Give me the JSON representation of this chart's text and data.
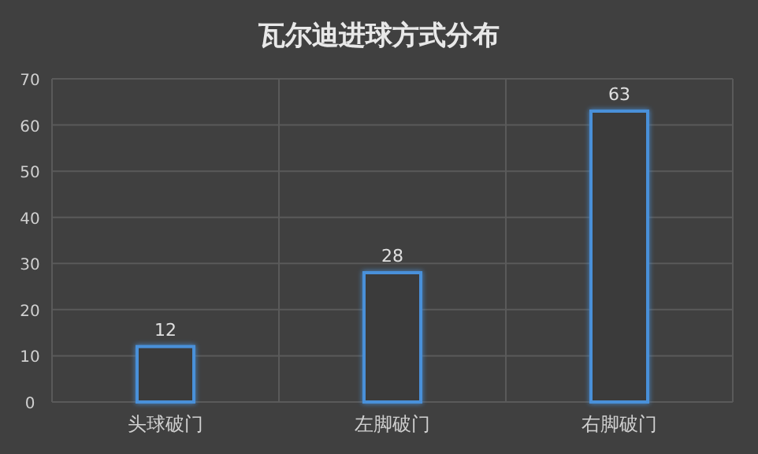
{
  "chart_data": {
    "type": "bar",
    "title": "瓦尔迪进球方式分布",
    "categories": [
      "头球破门",
      "左脚破门",
      "右脚破门"
    ],
    "values": [
      12,
      28,
      63
    ],
    "color": "#4a90d9",
    "ylim": [
      0,
      70
    ],
    "yticks": [
      0,
      10,
      20,
      30,
      40,
      50,
      60,
      70
    ],
    "grid": true,
    "data_labels": true
  }
}
